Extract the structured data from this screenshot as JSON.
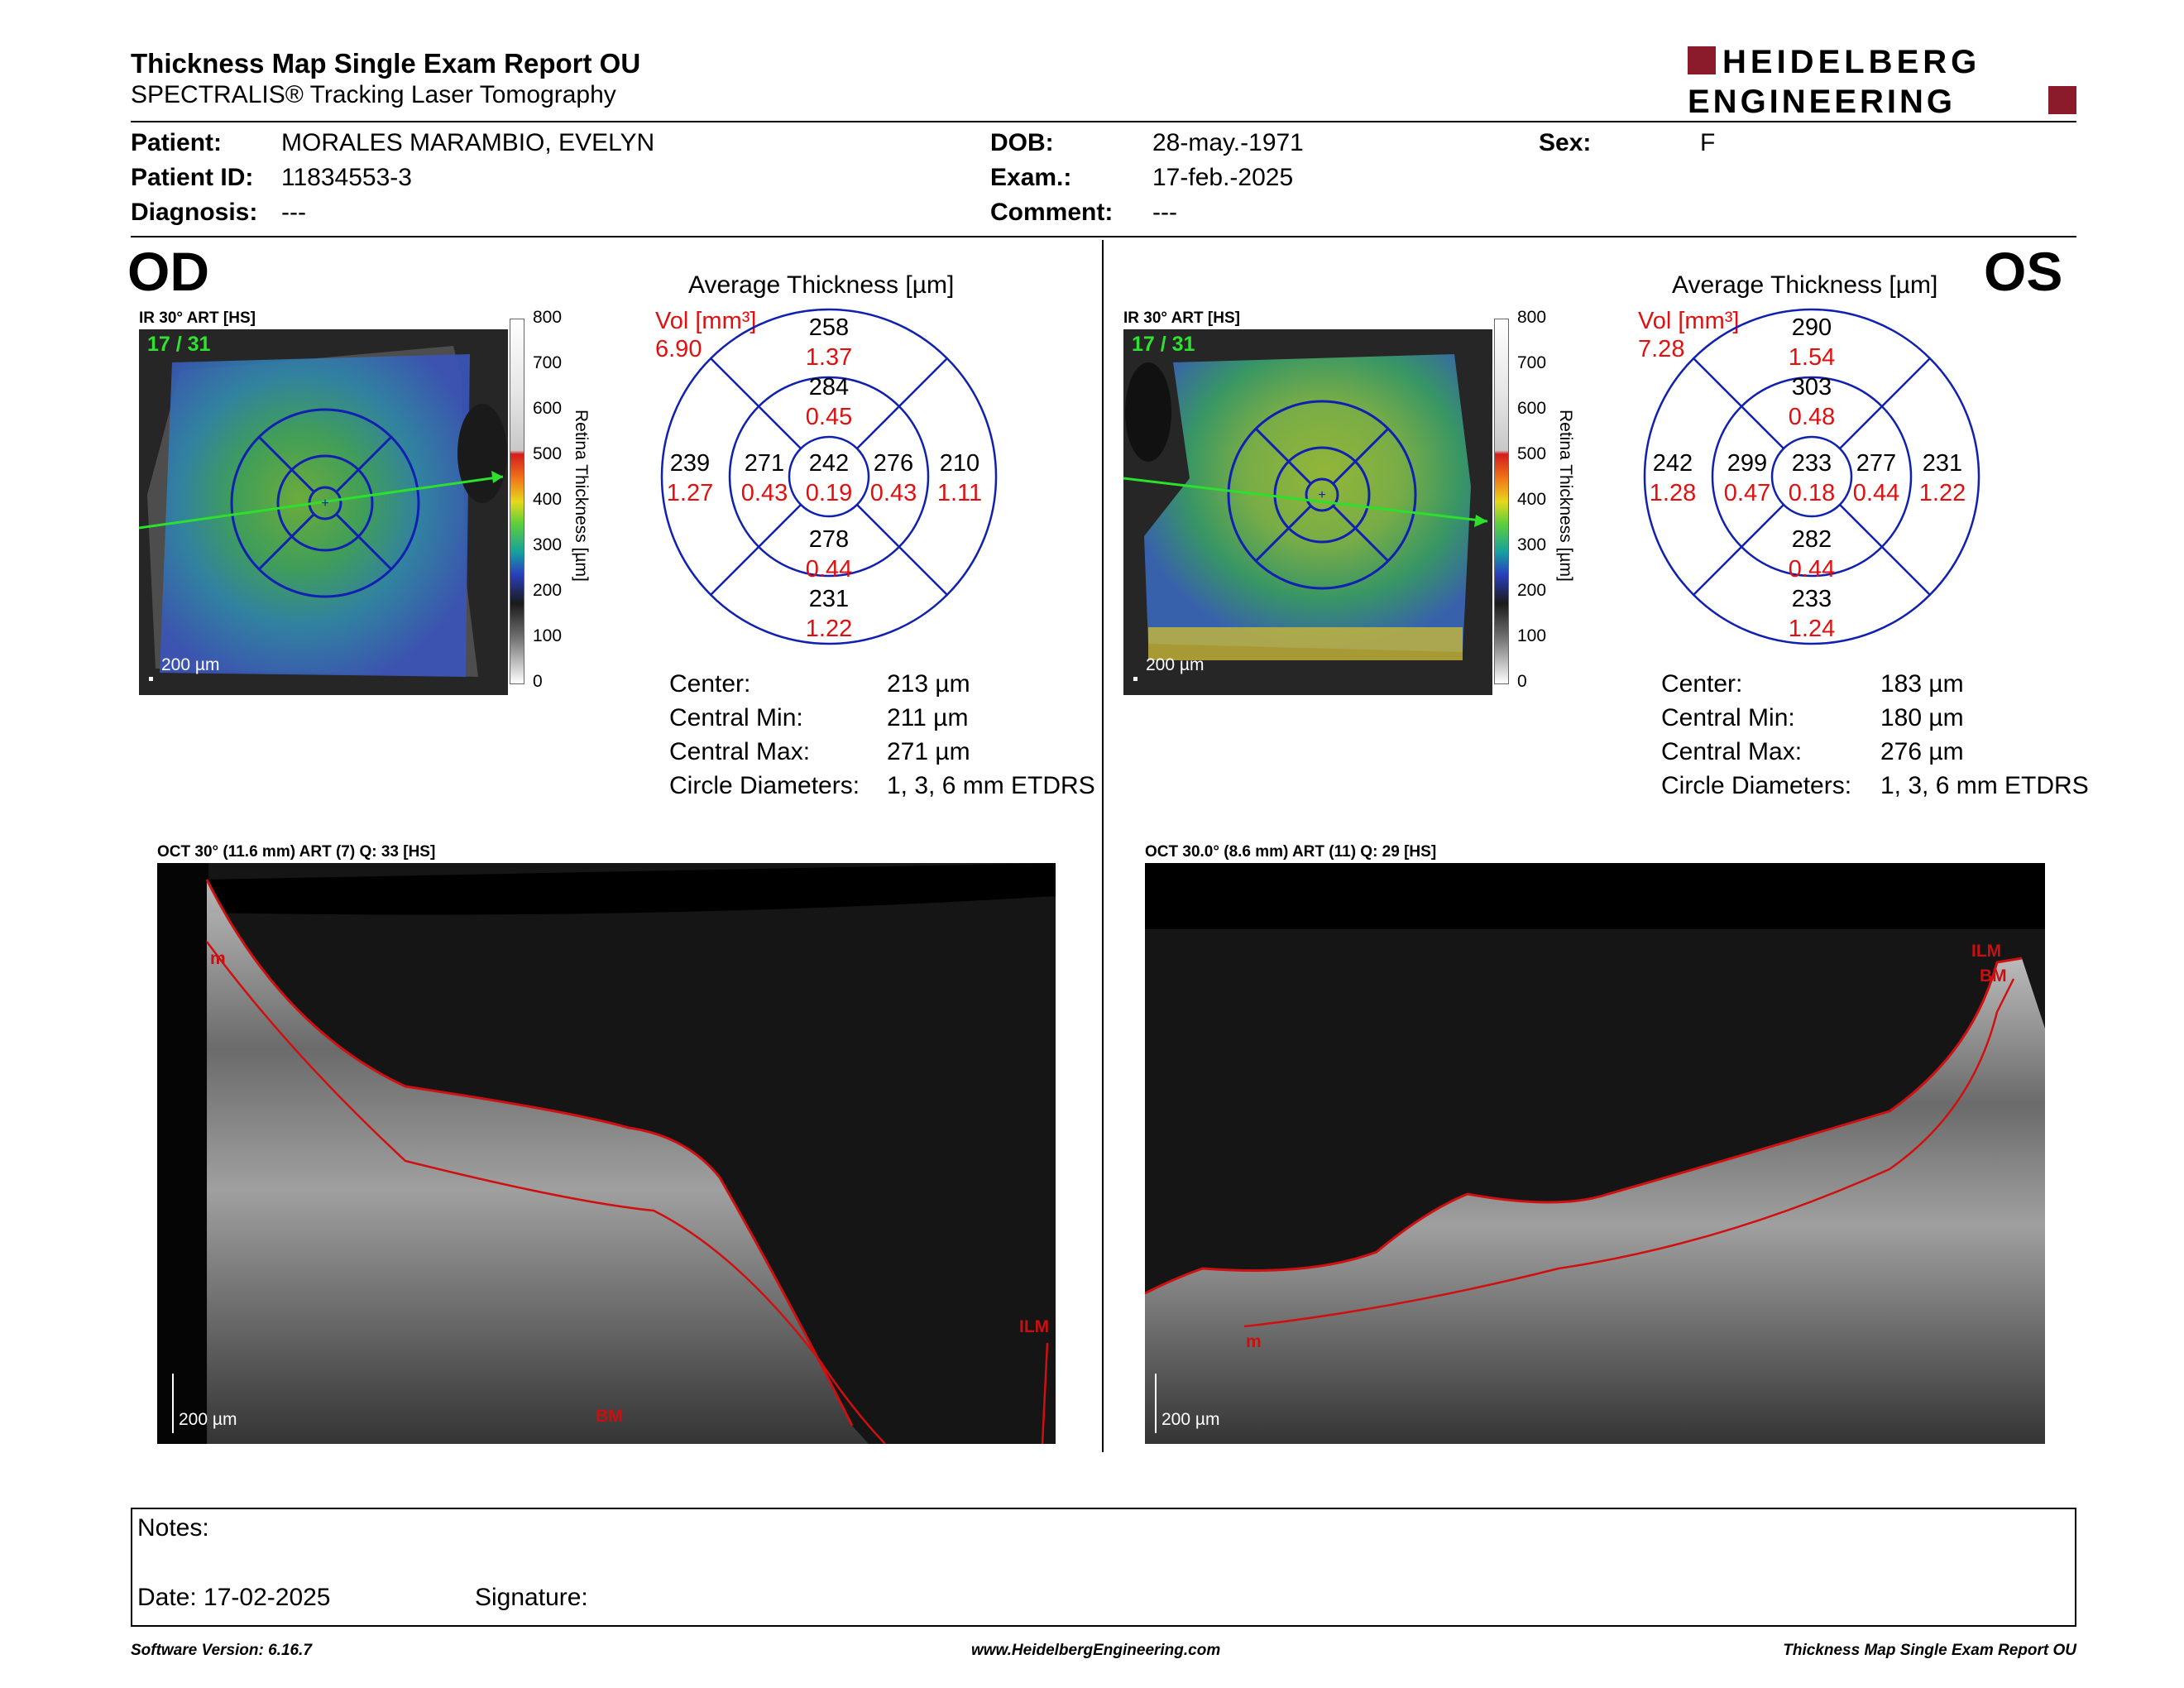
{
  "header": {
    "title": "Thickness Map Single Exam Report OU",
    "subtitle": "SPECTRALIS® Tracking Laser Tomography",
    "logo_line1": "HEIDELBERG",
    "logo_line2": "ENGINEERING",
    "brand_color": "#8b1a2b"
  },
  "patient": {
    "patient_label": "Patient:",
    "patient_value": "MORALES MARAMBIO, EVELYN",
    "id_label": "Patient ID:",
    "id_value": "11834553-3",
    "diagnosis_label": "Diagnosis:",
    "diagnosis_value": "---",
    "dob_label": "DOB:",
    "dob_value": "28-may.-1971",
    "exam_label": "Exam.:",
    "exam_value": "17-feb.-2025",
    "comment_label": "Comment:",
    "comment_value": "---",
    "sex_label": "Sex:",
    "sex_value": "F"
  },
  "od": {
    "eye": "OD",
    "ir_label": "IR 30° ART [HS]",
    "frames": "17 / 31",
    "scalebar": "200 µm",
    "avg_title": "Average Thickness [µm]",
    "vol_label": "Vol [mm³]",
    "vol_total": "6.90",
    "sectors": {
      "center_t": "242",
      "center_v": "0.19",
      "inner_sup_t": "284",
      "inner_sup_v": "0.45",
      "inner_inf_t": "278",
      "inner_inf_v": "0.44",
      "inner_left_t": "271",
      "inner_left_v": "0.43",
      "inner_right_t": "276",
      "inner_right_v": "0.43",
      "outer_sup_t": "258",
      "outer_sup_v": "1.37",
      "outer_inf_t": "231",
      "outer_inf_v": "1.22",
      "outer_left_t": "239",
      "outer_left_v": "1.27",
      "outer_right_t": "210",
      "outer_right_v": "1.11"
    },
    "stats": {
      "center_label": "Center:",
      "center_value": "213 µm",
      "min_label": "Central Min:",
      "min_value": "211 µm",
      "max_label": "Central Max:",
      "max_value": "271 µm",
      "circ_label": "Circle Diameters:",
      "circ_value": "1, 3, 6 mm ETDRS"
    },
    "oct_label": "OCT 30° (11.6 mm) ART (7) Q: 33 [HS]",
    "oct_scalebar": "200 µm",
    "oct_ilm": "ILM",
    "oct_bm": "BM",
    "oct_m": "m"
  },
  "os": {
    "eye": "OS",
    "ir_label": "IR 30° ART [HS]",
    "frames": "17 / 31",
    "scalebar": "200 µm",
    "avg_title": "Average Thickness [µm]",
    "vol_label": "Vol [mm³]",
    "vol_total": "7.28",
    "sectors": {
      "center_t": "233",
      "center_v": "0.18",
      "inner_sup_t": "303",
      "inner_sup_v": "0.48",
      "inner_inf_t": "282",
      "inner_inf_v": "0.44",
      "inner_left_t": "299",
      "inner_left_v": "0.47",
      "inner_right_t": "277",
      "inner_right_v": "0.44",
      "outer_sup_t": "290",
      "outer_sup_v": "1.54",
      "outer_inf_t": "233",
      "outer_inf_v": "1.24",
      "outer_left_t": "242",
      "outer_left_v": "1.28",
      "outer_right_t": "231",
      "outer_right_v": "1.22"
    },
    "stats": {
      "center_label": "Center:",
      "center_value": "183 µm",
      "min_label": "Central Min:",
      "min_value": "180 µm",
      "max_label": "Central Max:",
      "max_value": "276 µm",
      "circ_label": "Circle Diameters:",
      "circ_value": "1, 3, 6 mm ETDRS"
    },
    "oct_label": "OCT 30.0° (8.6 mm) ART (11) Q: 29 [HS]",
    "oct_scalebar": "200 µm",
    "oct_ilm": "ILM",
    "oct_bm": "BM",
    "oct_m": "m"
  },
  "colorbar": {
    "ticks": [
      "800",
      "700",
      "600",
      "500",
      "400",
      "300",
      "200",
      "100",
      "0"
    ],
    "title": "Retina  Thickness [µm]"
  },
  "notes": {
    "notes_label": "Notes:",
    "date_label": "Date: 17-02-2025",
    "signature_label": "Signature:"
  },
  "footer": {
    "software": "Software Version: 6.16.7",
    "website": "www.HeidelbergEngineering.com",
    "report": "Thickness Map Single Exam Report OU"
  }
}
